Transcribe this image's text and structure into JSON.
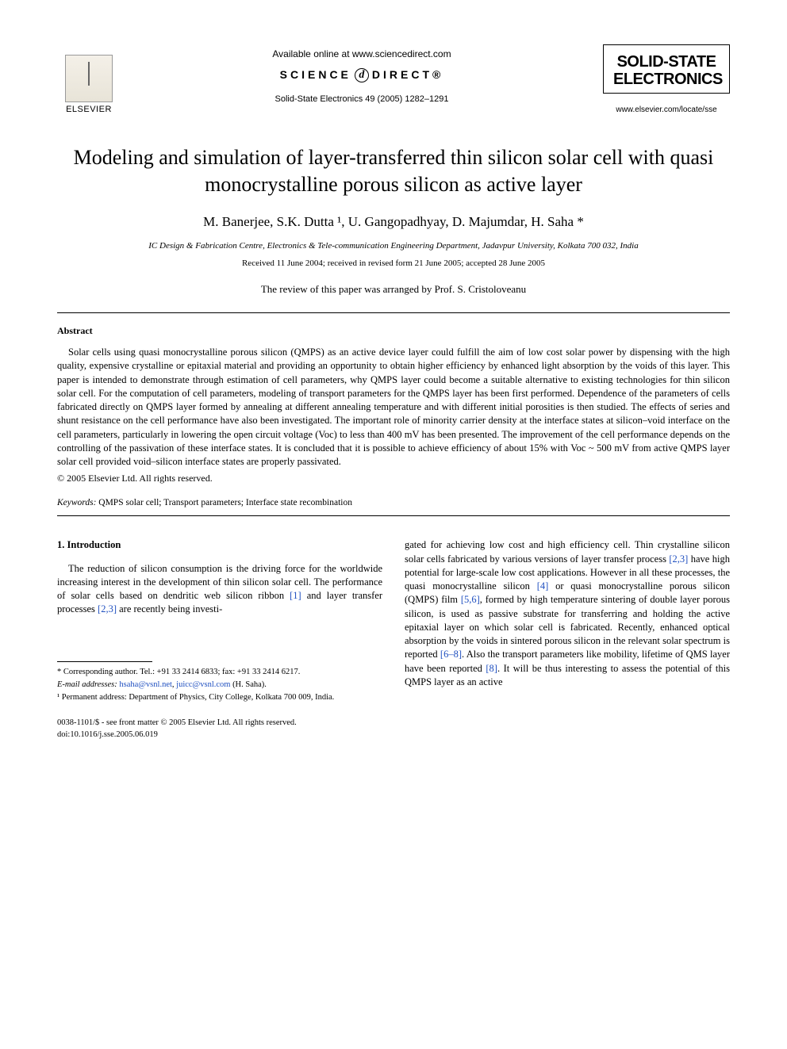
{
  "header": {
    "publisher_name": "ELSEVIER",
    "available_line": "Available online at www.sciencedirect.com",
    "sd_brand_left": "SCIENCE",
    "sd_brand_right": "DIRECT®",
    "citation": "Solid-State Electronics 49 (2005) 1282–1291",
    "journal_name_l1": "SOLID-STATE",
    "journal_name_l2": "ELECTRONICS",
    "journal_url": "www.elsevier.com/locate/sse"
  },
  "title": "Modeling and simulation of layer-transferred thin silicon solar cell with quasi monocrystalline porous silicon as active layer",
  "authors": "M. Banerjee, S.K. Dutta ¹, U. Gangopadhyay, D. Majumdar, H. Saha *",
  "affiliation": "IC Design & Fabrication Centre, Electronics & Tele-communication Engineering Department, Jadavpur University, Kolkata 700 032, India",
  "dates": "Received 11 June 2004; received in revised form 21 June 2005; accepted 28 June 2005",
  "review_note": "The review of this paper was arranged by Prof. S. Cristoloveanu",
  "abstract": {
    "heading": "Abstract",
    "body": "Solar cells using quasi monocrystalline porous silicon (QMPS) as an active device layer could fulfill the aim of low cost solar power by dispensing with the high quality, expensive crystalline or epitaxial material and providing an opportunity to obtain higher efficiency by enhanced light absorption by the voids of this layer. This paper is intended to demonstrate through estimation of cell parameters, why QMPS layer could become a suitable alternative to existing technologies for thin silicon solar cell. For the computation of cell parameters, modeling of transport parameters for the QMPS layer has been first performed. Dependence of the parameters of cells fabricated directly on QMPS layer formed by annealing at different annealing temperature and with different initial porosities is then studied. The effects of series and shunt resistance on the cell performance have also been investigated. The important role of minority carrier density at the interface states at silicon–void interface on the cell parameters, particularly in lowering the open circuit voltage (Voc) to less than 400 mV has been presented. The improvement of the cell performance depends on the controlling of the passivation of these interface states. It is concluded that it is possible to achieve efficiency of about 15% with Voc ~ 500 mV from active QMPS layer solar cell provided void–silicon interface states are properly passivated.",
    "copyright": "© 2005 Elsevier Ltd. All rights reserved."
  },
  "keywords": {
    "label": "Keywords:",
    "text": " QMPS solar cell; Transport parameters; Interface state recombination"
  },
  "section1": {
    "heading": "1. Introduction",
    "col_left": "The reduction of silicon consumption is the driving force for the worldwide increasing interest in the development of thin silicon solar cell. The performance of solar cells based on dendritic web silicon ribbon [1] and layer transfer processes [2,3] are recently being investi-",
    "col_right": "gated for achieving low cost and high efficiency cell. Thin crystalline silicon solar cells fabricated by various versions of layer transfer process [2,3] have high potential for large-scale low cost applications. However in all these processes, the quasi monocrystalline silicon [4] or quasi monocrystalline porous silicon (QMPS) film [5,6], formed by high temperature sintering of double layer porous silicon, is used as passive substrate for transferring and holding the active epitaxial layer on which solar cell is fabricated. Recently, enhanced optical absorption by the voids in sintered porous silicon in the relevant solar spectrum is reported [6–8]. Also the transport parameters like mobility, lifetime of QMS layer have been reported [8]. It will be thus interesting to assess the potential of this QMPS layer as an active"
  },
  "footnotes": {
    "corr": "* Corresponding author. Tel.: +91 33 2414 6833; fax: +91 33 2414 6217.",
    "email_label": "E-mail addresses:",
    "email1": "hsaha@vsnl.net",
    "email_sep": ", ",
    "email2": "juicc@vsnl.com",
    "email_tail": " (H. Saha).",
    "perm": "¹ Permanent address: Department of Physics, City College, Kolkata 700 009, India."
  },
  "footer": {
    "l1": "0038-1101/$ - see front matter © 2005 Elsevier Ltd. All rights reserved.",
    "l2": "doi:10.1016/j.sse.2005.06.019"
  },
  "refs": {
    "r1": "[1]",
    "r23a": "[2,3]",
    "r23b": "[2,3]",
    "r4": "[4]",
    "r56": "[5,6]",
    "r68": "[6–8]",
    "r8": "[8]"
  }
}
